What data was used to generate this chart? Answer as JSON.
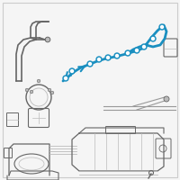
{
  "background_color": "#f5f5f5",
  "teal_color": "#1a8fc0",
  "gray_line": "#999999",
  "dark_gray": "#666666",
  "light_gray": "#bbbbbb",
  "border_color": "#cccccc",
  "fig_width": 2.0,
  "fig_height": 2.0,
  "dpi": 100
}
